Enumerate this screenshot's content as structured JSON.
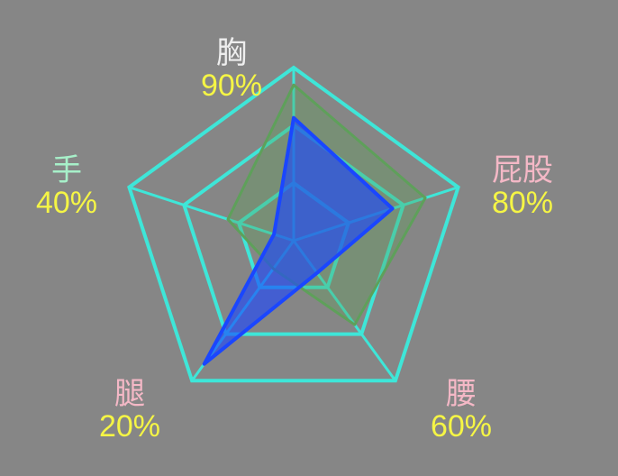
{
  "chart_data": {
    "type": "radar",
    "axes": [
      {
        "name": "胸",
        "value_label": "90%",
        "name_color": "#eeeeee"
      },
      {
        "name": "屁股",
        "value_label": "80%",
        "name_color": "#f4b8c6"
      },
      {
        "name": "腰",
        "value_label": "60%",
        "name_color": "#f4b8c6"
      },
      {
        "name": "腿",
        "value_label": "20%",
        "name_color": "#f4b8c6"
      },
      {
        "name": "手",
        "value_label": "40%",
        "name_color": "#a7f0c9"
      }
    ],
    "series": [
      {
        "values": [
          0.9,
          0.8,
          0.6,
          0.2,
          0.4
        ],
        "color": "#5ea05a"
      },
      {
        "values": [
          0.71,
          0.6,
          0.23,
          0.88,
          0.12
        ],
        "color": "#1a46ff"
      }
    ],
    "grid_color": "#3ee6d8",
    "grid_levels": 3,
    "value_label_color": "#f5f545"
  }
}
